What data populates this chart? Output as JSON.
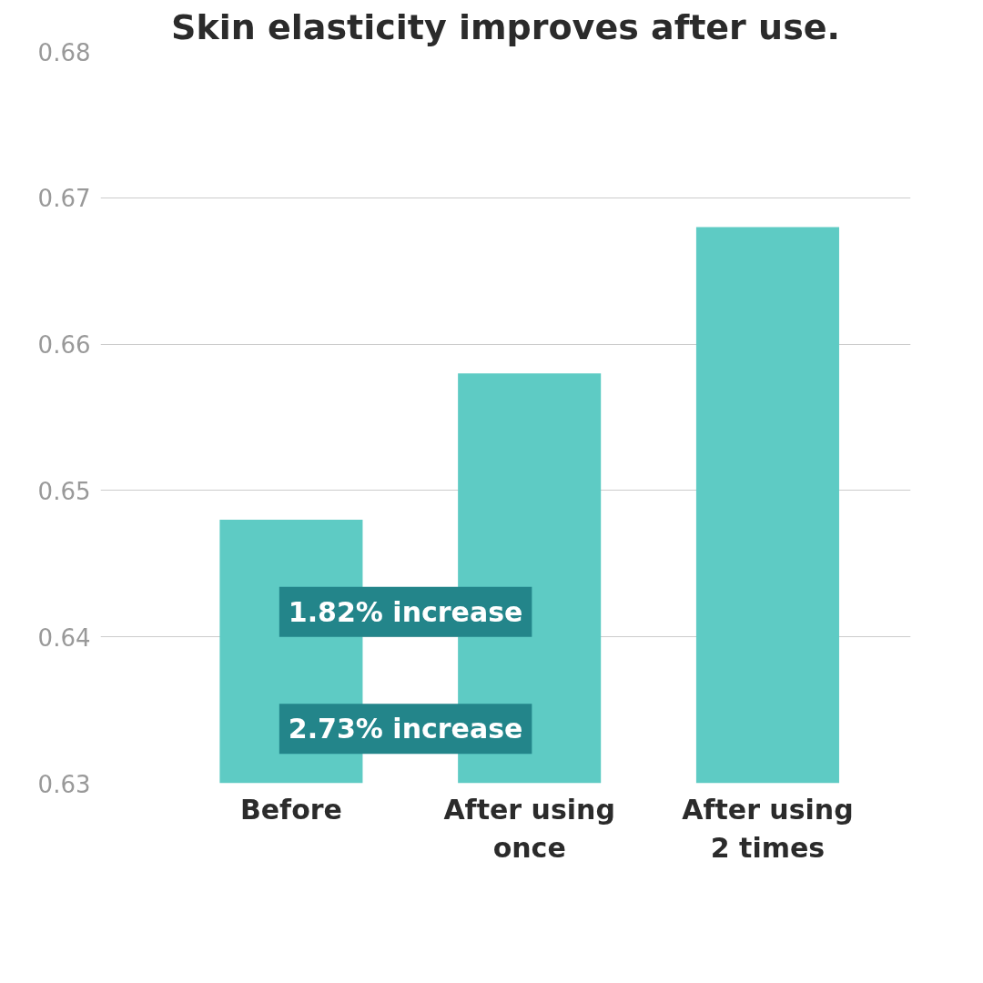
{
  "chart_data": {
    "type": "bar",
    "title": "Skin elasticity improves after use.",
    "categories": [
      "Before",
      "After using\nonce",
      "After using\n2 times"
    ],
    "values": [
      0.648,
      0.658,
      0.668
    ],
    "color": "#5ecbc4",
    "ylim": [
      0.63,
      0.68
    ],
    "yticks": [
      0.63,
      0.64,
      0.65,
      0.66,
      0.67,
      0.68
    ],
    "grid": "y",
    "annotations": [
      "1.82% increase",
      "2.73% increase"
    ]
  }
}
